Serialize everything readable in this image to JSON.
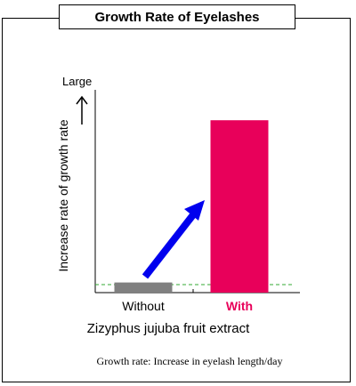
{
  "chart_data": {
    "type": "bar",
    "title": "Growth Rate of Eyelashes",
    "categories": [
      "Without",
      "With"
    ],
    "values": [
      0.05,
      0.85
    ],
    "ylim": [
      0,
      1
    ],
    "ylabel": "Increase rate of growth rate",
    "y_top_label": "Large",
    "xlabel": "Zizyphus jujuba fruit extract",
    "note": "Growth rate: Increase in eyelash length/day",
    "bar_colors": [
      "#808080",
      "#e8005a"
    ],
    "category_colors": [
      "#000000",
      "#e8005a"
    ],
    "arrow_color": "#0000ee",
    "baseline_color": "#33aa33"
  }
}
